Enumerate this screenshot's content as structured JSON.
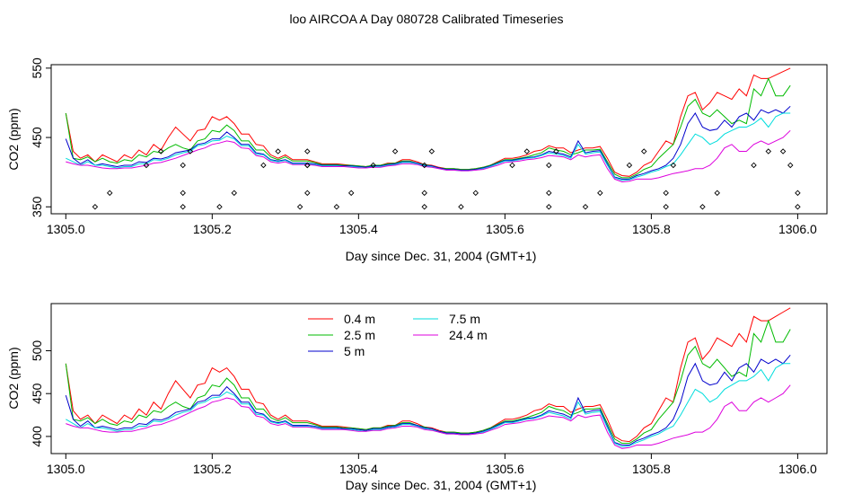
{
  "chart_data": [
    {
      "type": "line",
      "title": "loo AIRCOA A  Day 080728  Calibrated Timeseries",
      "xlabel": "Day since Dec. 31, 2004 (GMT+1)",
      "ylabel": "CO2 (ppm)",
      "xlim": [
        1304.98,
        1306.04
      ],
      "ylim": [
        340,
        555
      ],
      "xticks": [
        1305.0,
        1305.2,
        1305.4,
        1305.6,
        1305.8,
        1306.0
      ],
      "xtick_labels": [
        "1305.0",
        "1305.2",
        "1305.4",
        "1305.6",
        "1305.8",
        "1306.0"
      ],
      "yticks": [
        350,
        450,
        550
      ],
      "ytick_labels": [
        "350",
        "450",
        "550"
      ],
      "grid": false,
      "legend": "none",
      "x": [
        1305.0,
        1305.01,
        1305.02,
        1305.03,
        1305.04,
        1305.05,
        1305.06,
        1305.07,
        1305.08,
        1305.09,
        1305.1,
        1305.11,
        1305.12,
        1305.13,
        1305.14,
        1305.15,
        1305.16,
        1305.17,
        1305.18,
        1305.19,
        1305.2,
        1305.21,
        1305.22,
        1305.23,
        1305.24,
        1305.25,
        1305.26,
        1305.27,
        1305.28,
        1305.29,
        1305.3,
        1305.31,
        1305.32,
        1305.33,
        1305.34,
        1305.35,
        1305.36,
        1305.37,
        1305.38,
        1305.39,
        1305.4,
        1305.41,
        1305.42,
        1305.43,
        1305.44,
        1305.45,
        1305.46,
        1305.47,
        1305.48,
        1305.49,
        1305.5,
        1305.51,
        1305.52,
        1305.53,
        1305.54,
        1305.55,
        1305.56,
        1305.57,
        1305.58,
        1305.59,
        1305.6,
        1305.61,
        1305.62,
        1305.63,
        1305.64,
        1305.65,
        1305.66,
        1305.67,
        1305.68,
        1305.69,
        1305.7,
        1305.71,
        1305.72,
        1305.73,
        1305.74,
        1305.75,
        1305.76,
        1305.77,
        1305.78,
        1305.79,
        1305.8,
        1305.81,
        1305.82,
        1305.83,
        1305.84,
        1305.85,
        1305.86,
        1305.87,
        1305.88,
        1305.89,
        1305.9,
        1305.91,
        1305.92,
        1305.93,
        1305.94,
        1305.95,
        1305.96,
        1305.97,
        1305.98,
        1305.99
      ],
      "series": [
        {
          "name": "0.4 m",
          "color": "#ff0000",
          "values": [
            485,
            430,
            420,
            425,
            415,
            425,
            420,
            415,
            425,
            420,
            432,
            425,
            440,
            432,
            450,
            465,
            455,
            445,
            460,
            462,
            480,
            475,
            480,
            470,
            455,
            455,
            440,
            438,
            425,
            420,
            425,
            418,
            418,
            418,
            415,
            412,
            412,
            412,
            411,
            410,
            409,
            408,
            410,
            410,
            413,
            413,
            418,
            418,
            415,
            411,
            410,
            407,
            405,
            405,
            404,
            404,
            405,
            407,
            410,
            415,
            420,
            420,
            422,
            425,
            430,
            432,
            438,
            435,
            435,
            428,
            432,
            435,
            435,
            437,
            420,
            400,
            395,
            394,
            400,
            410,
            415,
            430,
            445,
            440,
            480,
            510,
            515,
            490,
            500,
            515,
            510,
            505,
            520,
            510,
            540,
            535,
            535,
            540,
            545,
            550
          ]
        },
        {
          "name": "2.5 m",
          "color": "#00bb00",
          "values": [
            485,
            420,
            418,
            422,
            415,
            420,
            415,
            413,
            418,
            416,
            425,
            422,
            430,
            428,
            435,
            440,
            435,
            432,
            445,
            448,
            460,
            458,
            468,
            460,
            445,
            445,
            432,
            432,
            422,
            418,
            422,
            416,
            416,
            416,
            414,
            411,
            411,
            411,
            410,
            410,
            409,
            408,
            410,
            410,
            412,
            413,
            416,
            416,
            413,
            411,
            409,
            406,
            405,
            405,
            404,
            404,
            405,
            407,
            410,
            414,
            418,
            418,
            420,
            422,
            425,
            428,
            435,
            432,
            430,
            425,
            428,
            432,
            432,
            433,
            415,
            397,
            392,
            392,
            397,
            404,
            408,
            420,
            430,
            440,
            465,
            495,
            505,
            485,
            480,
            490,
            480,
            470,
            475,
            470,
            520,
            510,
            535,
            510,
            510,
            525
          ]
        },
        {
          "name": "5 m",
          "color": "#0000cc",
          "values": [
            448,
            420,
            412,
            418,
            410,
            412,
            410,
            408,
            410,
            410,
            415,
            414,
            420,
            419,
            422,
            428,
            430,
            432,
            440,
            442,
            448,
            448,
            458,
            450,
            440,
            440,
            428,
            426,
            418,
            416,
            418,
            413,
            413,
            413,
            412,
            410,
            410,
            410,
            409,
            409,
            408,
            407,
            409,
            409,
            411,
            412,
            415,
            415,
            413,
            410,
            409,
            406,
            404,
            404,
            403,
            403,
            404,
            406,
            409,
            413,
            417,
            417,
            419,
            421,
            422,
            425,
            430,
            428,
            426,
            422,
            445,
            428,
            430,
            431,
            412,
            393,
            390,
            390,
            395,
            398,
            402,
            405,
            410,
            420,
            440,
            470,
            485,
            465,
            460,
            462,
            475,
            465,
            480,
            485,
            475,
            490,
            485,
            490,
            485,
            495
          ]
        },
        {
          "name": "7.5 m",
          "color": "#00dddd",
          "values": [
            420,
            415,
            410,
            415,
            410,
            410,
            408,
            406,
            408,
            408,
            412,
            412,
            418,
            417,
            420,
            425,
            428,
            430,
            438,
            440,
            445,
            446,
            452,
            448,
            438,
            438,
            426,
            425,
            417,
            415,
            417,
            412,
            412,
            412,
            411,
            409,
            409,
            409,
            408,
            408,
            407,
            406,
            408,
            408,
            410,
            411,
            414,
            414,
            412,
            409,
            408,
            405,
            403,
            403,
            402,
            402,
            403,
            405,
            408,
            412,
            416,
            416,
            418,
            420,
            421,
            424,
            428,
            426,
            424,
            420,
            440,
            426,
            428,
            429,
            410,
            392,
            388,
            389,
            393,
            396,
            400,
            403,
            408,
            412,
            425,
            440,
            455,
            450,
            440,
            445,
            455,
            460,
            465,
            465,
            470,
            478,
            465,
            480,
            485,
            485
          ]
        },
        {
          "name": "24.4 m",
          "color": "#dd00dd",
          "values": [
            415,
            412,
            410,
            410,
            408,
            406,
            405,
            405,
            406,
            406,
            408,
            410,
            413,
            414,
            417,
            420,
            424,
            428,
            432,
            435,
            440,
            442,
            445,
            443,
            435,
            434,
            424,
            422,
            415,
            413,
            415,
            411,
            411,
            411,
            410,
            408,
            408,
            408,
            408,
            407,
            406,
            406,
            407,
            407,
            409,
            410,
            412,
            412,
            411,
            408,
            407,
            405,
            403,
            403,
            402,
            402,
            403,
            404,
            407,
            410,
            414,
            415,
            416,
            418,
            419,
            421,
            424,
            423,
            422,
            418,
            425,
            422,
            424,
            425,
            405,
            390,
            386,
            387,
            390,
            390,
            390,
            392,
            395,
            398,
            400,
            402,
            405,
            405,
            410,
            420,
            435,
            440,
            430,
            430,
            440,
            445,
            440,
            445,
            450,
            460
          ]
        }
      ],
      "scatter_points": {
        "name": "",
        "x": [
          1305.04,
          1305.06,
          1305.11,
          1305.13,
          1305.16,
          1305.16,
          1305.16,
          1305.17,
          1305.21,
          1305.23,
          1305.27,
          1305.29,
          1305.32,
          1305.33,
          1305.33,
          1305.33,
          1305.33,
          1305.37,
          1305.39,
          1305.42,
          1305.45,
          1305.49,
          1305.49,
          1305.49,
          1305.5,
          1305.54,
          1305.56,
          1305.61,
          1305.63,
          1305.66,
          1305.66,
          1305.66,
          1305.67,
          1305.71,
          1305.73,
          1305.77,
          1305.79,
          1305.82,
          1305.82,
          1305.83,
          1305.87,
          1305.89,
          1305.94,
          1305.96,
          1305.98,
          1305.99,
          1306.0,
          1306.0
        ],
        "y": [
          350,
          370,
          410,
          430,
          350,
          370,
          410,
          430,
          350,
          370,
          410,
          430,
          350,
          370,
          410,
          430,
          410,
          350,
          370,
          410,
          430,
          350,
          370,
          410,
          430,
          350,
          370,
          410,
          430,
          350,
          370,
          410,
          430,
          350,
          370,
          410,
          430,
          350,
          370,
          410,
          350,
          370,
          410,
          430,
          430,
          410,
          370,
          350
        ]
      }
    },
    {
      "type": "line",
      "title": "",
      "xlabel": "Day since Dec. 31, 2004 (GMT+1)",
      "ylabel": "CO2 (ppm)",
      "xlim": [
        1304.98,
        1306.04
      ],
      "ylim": [
        380,
        555
      ],
      "xticks": [
        1305.0,
        1305.2,
        1305.4,
        1305.6,
        1305.8,
        1306.0
      ],
      "xtick_labels": [
        "1305.0",
        "1305.2",
        "1305.4",
        "1305.6",
        "1305.8",
        "1306.0"
      ],
      "yticks": [
        400,
        450,
        500
      ],
      "ytick_labels": [
        "400",
        "450",
        "500"
      ],
      "grid": false,
      "legend": "top-center",
      "legend_entries": [
        {
          "name": "0.4 m",
          "color": "#ff0000"
        },
        {
          "name": "2.5 m",
          "color": "#00bb00"
        },
        {
          "name": "5 m",
          "color": "#0000cc"
        },
        {
          "name": "7.5 m",
          "color": "#00dddd"
        },
        {
          "name": "24.4 m",
          "color": "#dd00dd"
        }
      ]
    }
  ]
}
